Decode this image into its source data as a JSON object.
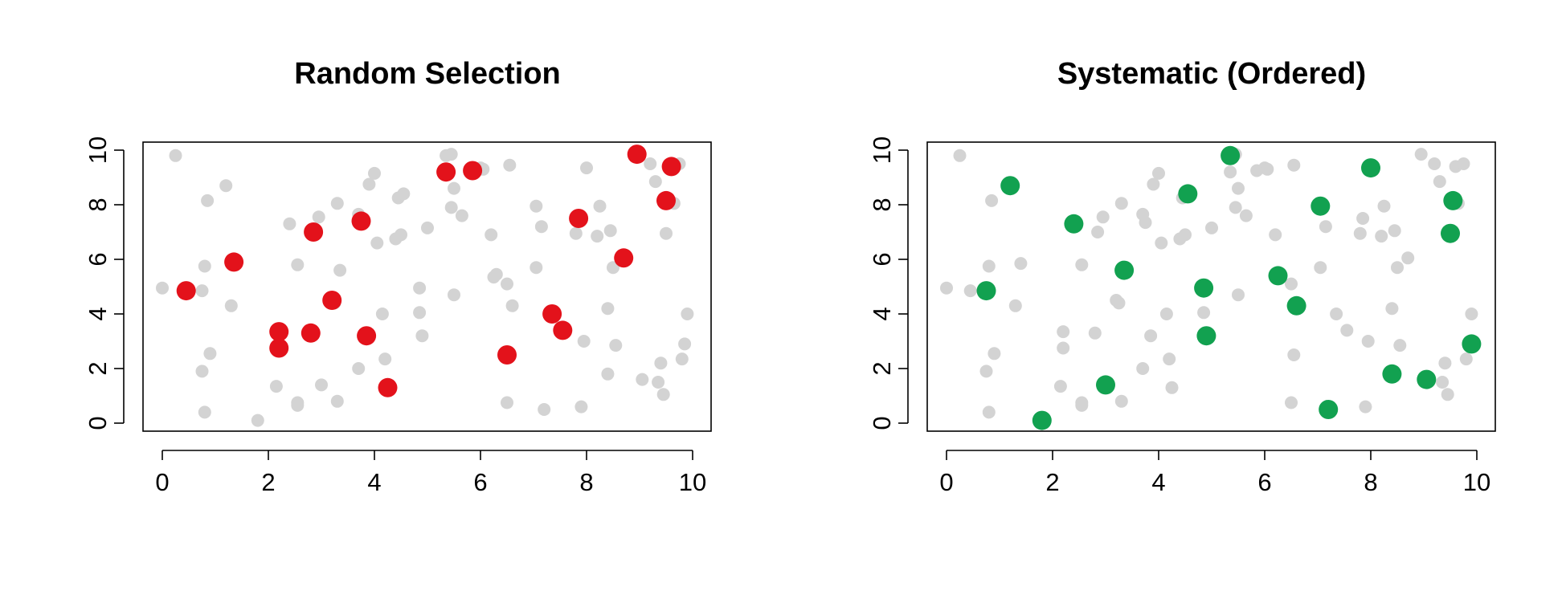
{
  "chart_data": [
    {
      "type": "scatter",
      "title": "Random Selection",
      "xlabel": "",
      "ylabel": "",
      "xlim": [
        0,
        10
      ],
      "ylim": [
        0,
        10
      ],
      "xticks": [
        "0",
        "2",
        "4",
        "6",
        "8",
        "10"
      ],
      "yticks": [
        "0",
        "2",
        "4",
        "6",
        "8",
        "10"
      ],
      "grid": false,
      "background_color": "#d3d3d3",
      "highlight_color": "#e3121b",
      "background_points": [
        [
          0.25,
          9.8
        ],
        [
          0.0,
          4.95
        ],
        [
          0.45,
          4.85
        ],
        [
          0.75,
          4.85
        ],
        [
          0.8,
          5.75
        ],
        [
          0.85,
          8.15
        ],
        [
          0.9,
          2.55
        ],
        [
          0.75,
          1.9
        ],
        [
          0.8,
          0.4
        ],
        [
          1.2,
          8.7
        ],
        [
          1.3,
          4.3
        ],
        [
          1.4,
          5.85
        ],
        [
          1.8,
          0.1
        ],
        [
          2.15,
          1.35
        ],
        [
          2.2,
          3.35
        ],
        [
          2.2,
          2.75
        ],
        [
          2.4,
          7.3
        ],
        [
          2.55,
          5.8
        ],
        [
          2.55,
          0.75
        ],
        [
          2.55,
          0.65
        ],
        [
          2.8,
          3.3
        ],
        [
          2.85,
          7.0
        ],
        [
          2.95,
          7.55
        ],
        [
          3.0,
          1.4
        ],
        [
          3.2,
          4.5
        ],
        [
          3.25,
          4.4
        ],
        [
          3.3,
          0.8
        ],
        [
          3.3,
          8.05
        ],
        [
          3.35,
          5.6
        ],
        [
          3.7,
          7.65
        ],
        [
          3.7,
          2.0
        ],
        [
          3.75,
          7.35
        ],
        [
          3.85,
          3.2
        ],
        [
          3.9,
          8.75
        ],
        [
          4.0,
          9.15
        ],
        [
          4.05,
          6.6
        ],
        [
          4.15,
          4.0
        ],
        [
          4.2,
          2.35
        ],
        [
          4.25,
          1.3
        ],
        [
          4.4,
          6.75
        ],
        [
          4.45,
          8.25
        ],
        [
          4.5,
          6.9
        ],
        [
          4.55,
          8.4
        ],
        [
          4.85,
          4.95
        ],
        [
          4.85,
          4.05
        ],
        [
          4.9,
          3.2
        ],
        [
          5.0,
          7.15
        ],
        [
          5.35,
          9.8
        ],
        [
          5.45,
          9.85
        ],
        [
          5.35,
          9.2
        ],
        [
          5.5,
          8.6
        ],
        [
          5.45,
          7.9
        ],
        [
          5.5,
          4.7
        ],
        [
          5.65,
          7.6
        ],
        [
          5.85,
          9.25
        ],
        [
          6.0,
          9.35
        ],
        [
          6.05,
          9.3
        ],
        [
          6.2,
          6.9
        ],
        [
          6.25,
          5.35
        ],
        [
          6.3,
          5.45
        ],
        [
          6.5,
          5.1
        ],
        [
          6.55,
          9.45
        ],
        [
          6.55,
          2.5
        ],
        [
          6.5,
          0.75
        ],
        [
          6.6,
          4.3
        ],
        [
          7.05,
          7.95
        ],
        [
          7.05,
          5.7
        ],
        [
          7.15,
          7.2
        ],
        [
          7.2,
          0.5
        ],
        [
          7.35,
          4.0
        ],
        [
          7.55,
          3.4
        ],
        [
          7.8,
          6.95
        ],
        [
          7.85,
          7.5
        ],
        [
          7.9,
          0.6
        ],
        [
          7.95,
          3.0
        ],
        [
          8.0,
          9.35
        ],
        [
          8.2,
          6.85
        ],
        [
          8.25,
          7.95
        ],
        [
          8.4,
          1.8
        ],
        [
          8.4,
          4.2
        ],
        [
          8.45,
          7.05
        ],
        [
          8.5,
          5.7
        ],
        [
          8.55,
          2.85
        ],
        [
          8.7,
          6.05
        ],
        [
          8.95,
          9.85
        ],
        [
          9.05,
          1.6
        ],
        [
          9.2,
          9.5
        ],
        [
          9.3,
          8.85
        ],
        [
          9.35,
          1.5
        ],
        [
          9.4,
          2.2
        ],
        [
          9.45,
          1.05
        ],
        [
          9.5,
          6.95
        ],
        [
          9.55,
          8.15
        ],
        [
          9.65,
          8.05
        ],
        [
          9.6,
          9.4
        ],
        [
          9.75,
          9.5
        ],
        [
          9.8,
          2.35
        ],
        [
          9.85,
          2.9
        ],
        [
          9.9,
          4.0
        ]
      ],
      "highlighted_points": [
        [
          0.45,
          4.85
        ],
        [
          1.35,
          5.9
        ],
        [
          2.2,
          3.35
        ],
        [
          2.2,
          2.75
        ],
        [
          2.8,
          3.3
        ],
        [
          2.85,
          7.0
        ],
        [
          3.2,
          4.5
        ],
        [
          3.75,
          7.4
        ],
        [
          3.85,
          3.2
        ],
        [
          4.25,
          1.3
        ],
        [
          5.35,
          9.2
        ],
        [
          5.85,
          9.25
        ],
        [
          6.5,
          2.5
        ],
        [
          7.35,
          4.0
        ],
        [
          7.55,
          3.4
        ],
        [
          7.85,
          7.5
        ],
        [
          8.7,
          6.05
        ],
        [
          8.95,
          9.85
        ],
        [
          9.5,
          8.15
        ],
        [
          9.6,
          9.4
        ]
      ]
    },
    {
      "type": "scatter",
      "title": "Systematic (Ordered)",
      "xlabel": "",
      "ylabel": "",
      "xlim": [
        0,
        10
      ],
      "ylim": [
        0,
        10
      ],
      "xticks": [
        "0",
        "2",
        "4",
        "6",
        "8",
        "10"
      ],
      "yticks": [
        "0",
        "2",
        "4",
        "6",
        "8",
        "10"
      ],
      "grid": false,
      "background_color": "#d3d3d3",
      "highlight_color": "#12a150",
      "background_points": [
        [
          0.25,
          9.8
        ],
        [
          0.0,
          4.95
        ],
        [
          0.45,
          4.85
        ],
        [
          0.75,
          4.85
        ],
        [
          0.8,
          5.75
        ],
        [
          0.85,
          8.15
        ],
        [
          0.9,
          2.55
        ],
        [
          0.75,
          1.9
        ],
        [
          0.8,
          0.4
        ],
        [
          1.2,
          8.7
        ],
        [
          1.3,
          4.3
        ],
        [
          1.4,
          5.85
        ],
        [
          1.8,
          0.1
        ],
        [
          2.15,
          1.35
        ],
        [
          2.2,
          3.35
        ],
        [
          2.2,
          2.75
        ],
        [
          2.4,
          7.3
        ],
        [
          2.55,
          5.8
        ],
        [
          2.55,
          0.75
        ],
        [
          2.55,
          0.65
        ],
        [
          2.8,
          3.3
        ],
        [
          2.85,
          7.0
        ],
        [
          2.95,
          7.55
        ],
        [
          3.0,
          1.4
        ],
        [
          3.2,
          4.5
        ],
        [
          3.25,
          4.4
        ],
        [
          3.3,
          0.8
        ],
        [
          3.3,
          8.05
        ],
        [
          3.35,
          5.6
        ],
        [
          3.7,
          7.65
        ],
        [
          3.7,
          2.0
        ],
        [
          3.75,
          7.35
        ],
        [
          3.85,
          3.2
        ],
        [
          3.9,
          8.75
        ],
        [
          4.0,
          9.15
        ],
        [
          4.05,
          6.6
        ],
        [
          4.15,
          4.0
        ],
        [
          4.2,
          2.35
        ],
        [
          4.25,
          1.3
        ],
        [
          4.4,
          6.75
        ],
        [
          4.45,
          8.25
        ],
        [
          4.5,
          6.9
        ],
        [
          4.55,
          8.4
        ],
        [
          4.85,
          4.95
        ],
        [
          4.85,
          4.05
        ],
        [
          4.9,
          3.2
        ],
        [
          5.0,
          7.15
        ],
        [
          5.35,
          9.8
        ],
        [
          5.45,
          9.85
        ],
        [
          5.35,
          9.2
        ],
        [
          5.5,
          8.6
        ],
        [
          5.45,
          7.9
        ],
        [
          5.5,
          4.7
        ],
        [
          5.65,
          7.6
        ],
        [
          5.85,
          9.25
        ],
        [
          6.0,
          9.35
        ],
        [
          6.05,
          9.3
        ],
        [
          6.2,
          6.9
        ],
        [
          6.25,
          5.35
        ],
        [
          6.3,
          5.45
        ],
        [
          6.5,
          5.1
        ],
        [
          6.55,
          9.45
        ],
        [
          6.55,
          2.5
        ],
        [
          6.5,
          0.75
        ],
        [
          6.6,
          4.3
        ],
        [
          7.05,
          7.95
        ],
        [
          7.05,
          5.7
        ],
        [
          7.15,
          7.2
        ],
        [
          7.2,
          0.5
        ],
        [
          7.35,
          4.0
        ],
        [
          7.55,
          3.4
        ],
        [
          7.8,
          6.95
        ],
        [
          7.85,
          7.5
        ],
        [
          7.9,
          0.6
        ],
        [
          7.95,
          3.0
        ],
        [
          8.0,
          9.35
        ],
        [
          8.2,
          6.85
        ],
        [
          8.25,
          7.95
        ],
        [
          8.4,
          1.8
        ],
        [
          8.4,
          4.2
        ],
        [
          8.45,
          7.05
        ],
        [
          8.5,
          5.7
        ],
        [
          8.55,
          2.85
        ],
        [
          8.7,
          6.05
        ],
        [
          8.95,
          9.85
        ],
        [
          9.05,
          1.6
        ],
        [
          9.2,
          9.5
        ],
        [
          9.3,
          8.85
        ],
        [
          9.35,
          1.5
        ],
        [
          9.4,
          2.2
        ],
        [
          9.45,
          1.05
        ],
        [
          9.5,
          6.95
        ],
        [
          9.55,
          8.15
        ],
        [
          9.65,
          8.05
        ],
        [
          9.6,
          9.4
        ],
        [
          9.75,
          9.5
        ],
        [
          9.8,
          2.35
        ],
        [
          9.85,
          2.9
        ],
        [
          9.9,
          4.0
        ]
      ],
      "highlighted_points": [
        [
          0.75,
          4.85
        ],
        [
          1.2,
          8.7
        ],
        [
          1.8,
          0.1
        ],
        [
          2.4,
          7.3
        ],
        [
          3.0,
          1.4
        ],
        [
          3.35,
          5.6
        ],
        [
          4.55,
          8.4
        ],
        [
          4.85,
          4.95
        ],
        [
          4.9,
          3.2
        ],
        [
          5.35,
          9.8
        ],
        [
          6.25,
          5.4
        ],
        [
          6.6,
          4.3
        ],
        [
          7.05,
          7.95
        ],
        [
          7.2,
          0.5
        ],
        [
          8.0,
          9.35
        ],
        [
          8.4,
          1.8
        ],
        [
          9.05,
          1.6
        ],
        [
          9.5,
          6.95
        ],
        [
          9.55,
          8.15
        ],
        [
          9.9,
          2.9
        ]
      ]
    }
  ]
}
